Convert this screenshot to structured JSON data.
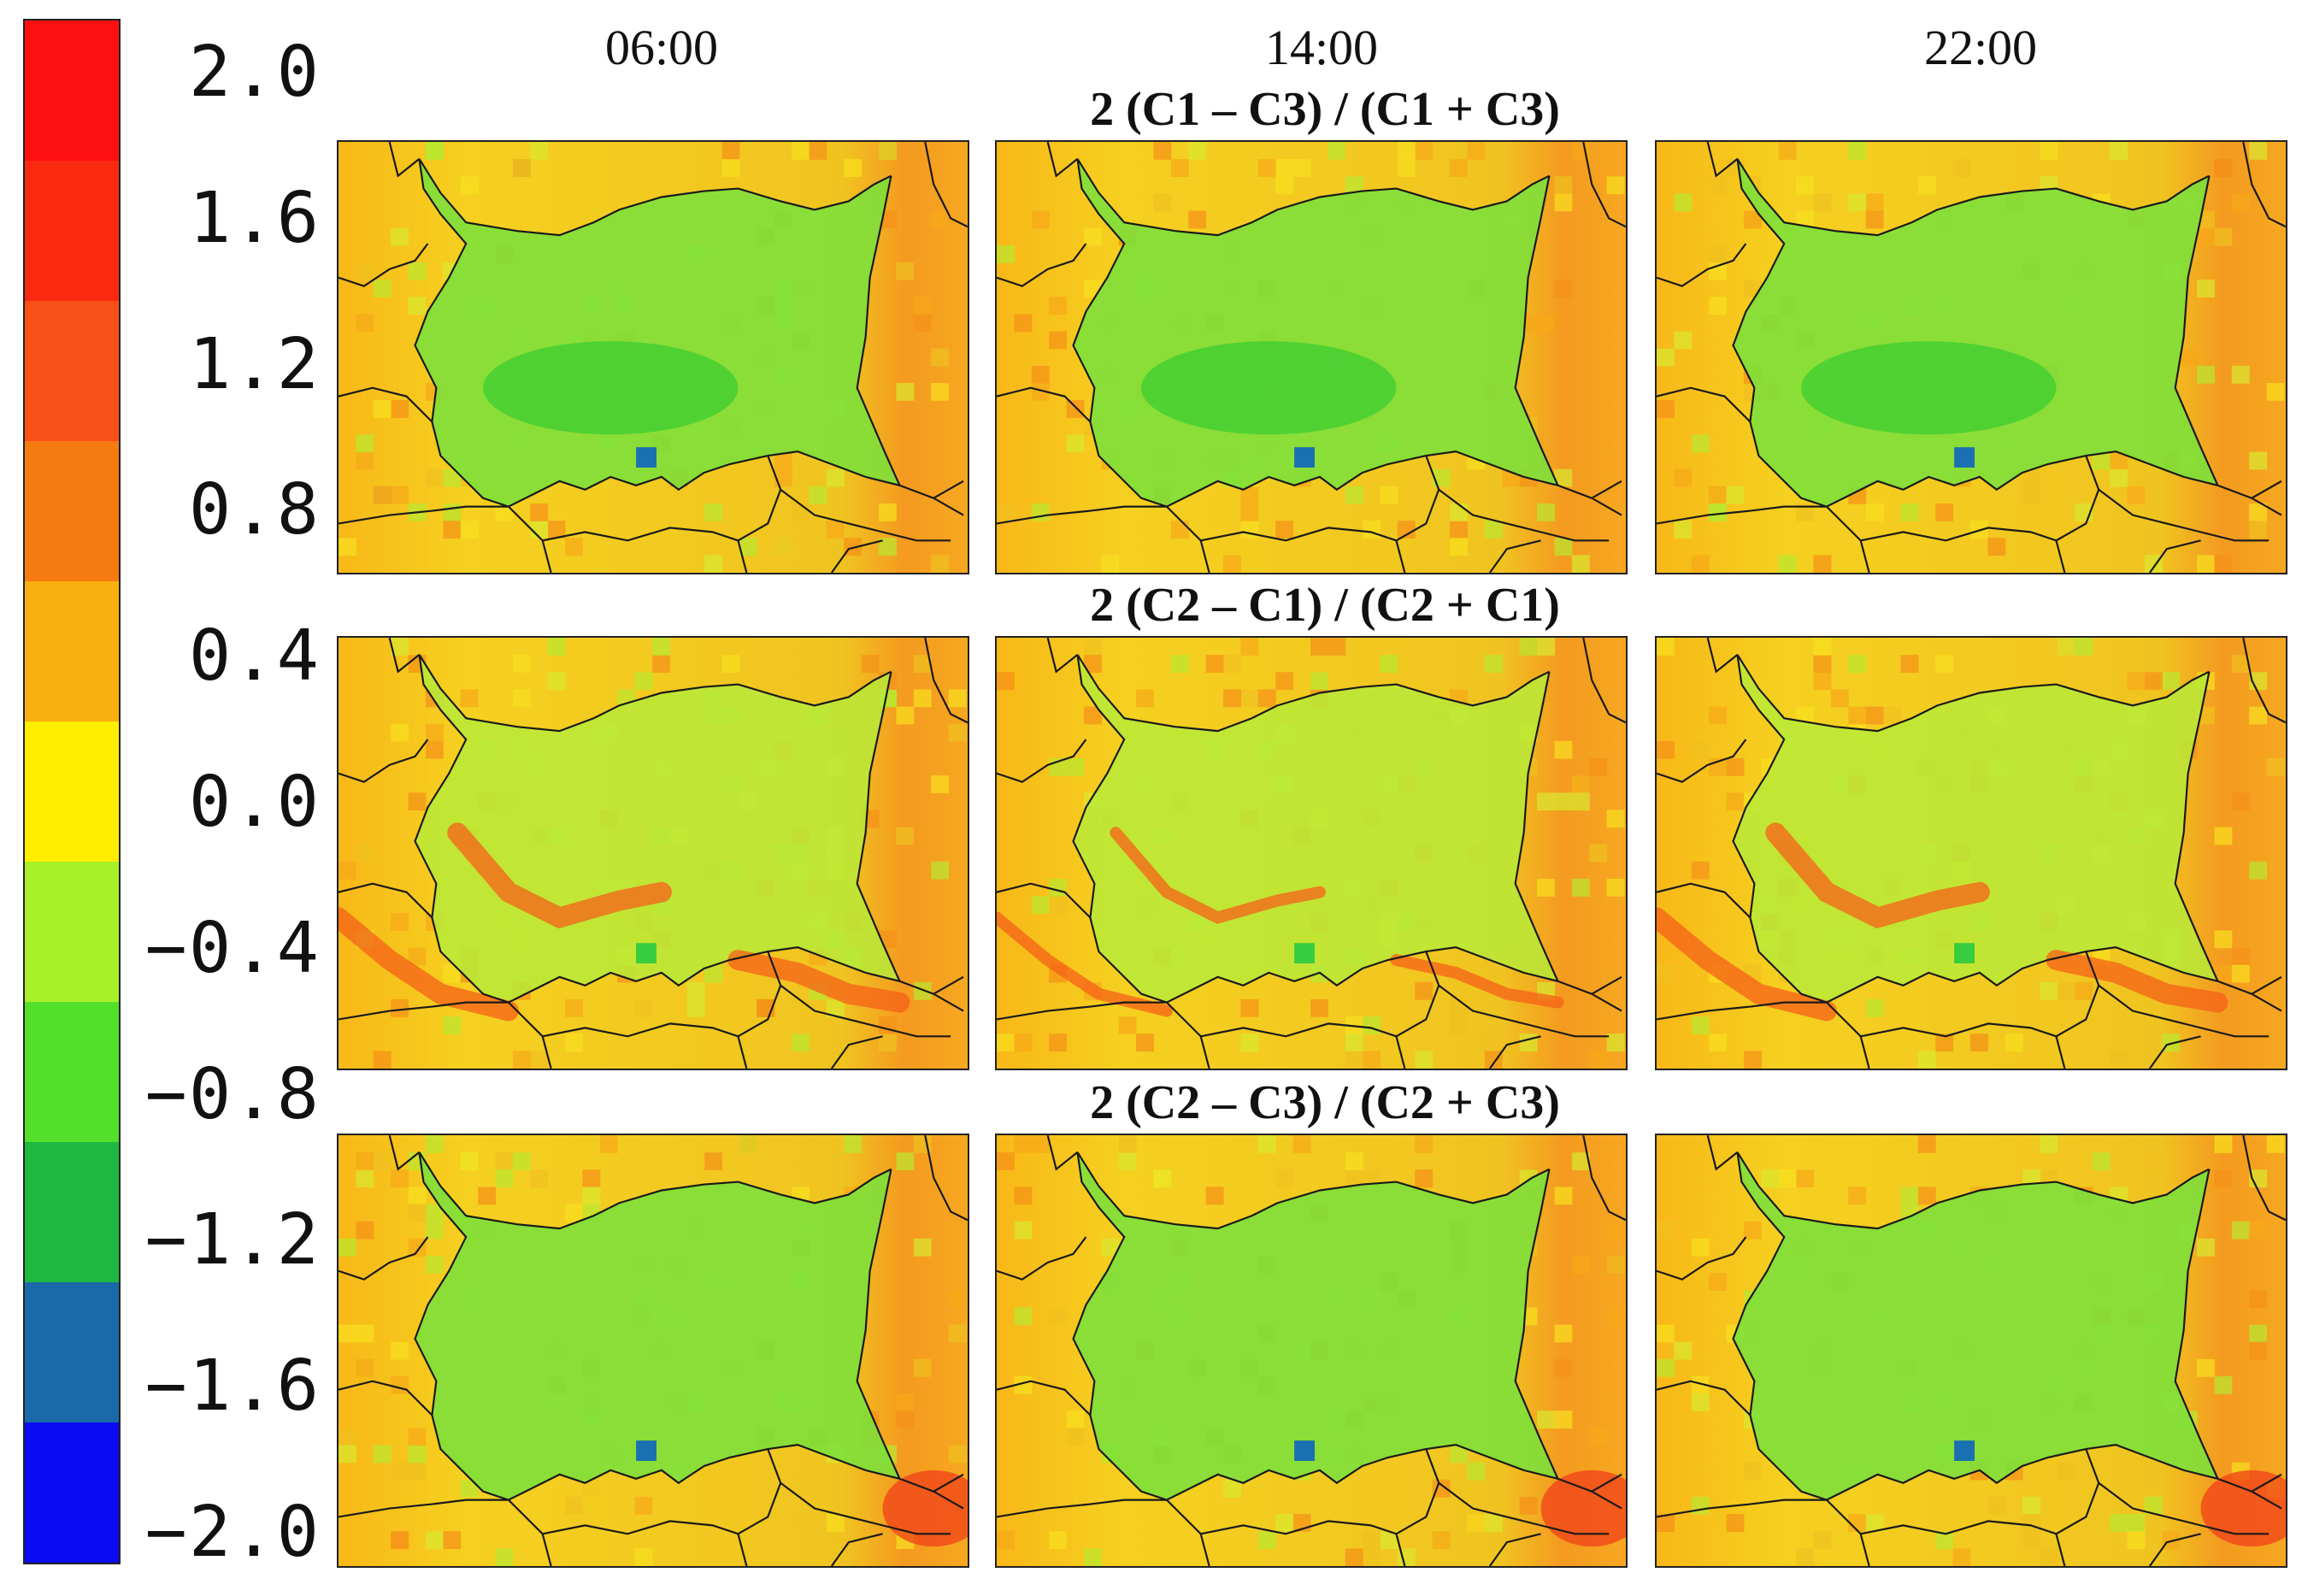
{
  "figure": {
    "time_labels": [
      "06:00",
      "14:00",
      "22:00"
    ],
    "row_titles": [
      "2 (C1 – C3) / (C1 + C3)",
      "2 (C2 – C1) / (C2 + C1)",
      "2 (C2 – C3) / (C2 + C3)"
    ]
  },
  "colorbar": {
    "tick_labels": [
      "2.0",
      "1.6",
      "1.2",
      "0.8",
      "0.4",
      "0.0",
      "−0.4",
      "−0.8",
      "−1.2",
      "−1.6",
      "−2.0"
    ],
    "bands": [
      "#ff1010",
      "#fa2a10",
      "#f95018",
      "#f57a10",
      "#f8b010",
      "#ffee00",
      "#a8f028",
      "#52e02a",
      "#1cb840",
      "#1a6aaa",
      "#0a0af5"
    ]
  },
  "map_style": {
    "country_fill_green": "#7ee03a",
    "outside_orange": "#f8a81a",
    "border_color": "#1a1a1a"
  }
}
